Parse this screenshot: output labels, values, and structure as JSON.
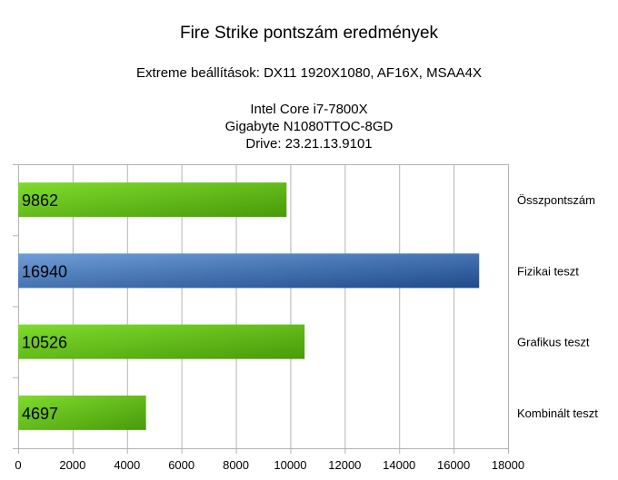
{
  "chart": {
    "title": "Fire Strike pontszám eredmények",
    "subtitle": "Extreme beállítások: DX11 1920X1080, AF16X, MSAA4X",
    "info_lines": [
      "Intel Core i7-7800X",
      "Gigabyte N1080TTOC-8GD",
      "Drive: 23.21.13.9101"
    ]
  },
  "colors": {
    "green_light": "#7edc2c",
    "green_dark": "#4a9a0a",
    "blue_light": "#6e9ed8",
    "blue_dark": "#1f4a8a",
    "grid": "#b3b3b3"
  },
  "chart_data": {
    "type": "bar",
    "orientation": "horizontal",
    "title": "Fire Strike pontszám eredmények",
    "categories": [
      "Összpontszám",
      "Fizikai teszt",
      "Grafikus teszt",
      "Kombinált teszt"
    ],
    "values": [
      9862,
      16940,
      10526,
      4697
    ],
    "bar_colors": [
      "green",
      "blue",
      "green",
      "green"
    ],
    "xlim": [
      0,
      18000
    ],
    "xticks": [
      0,
      2000,
      4000,
      6000,
      8000,
      10000,
      12000,
      14000,
      16000,
      18000
    ],
    "grid": true,
    "legend": "none"
  }
}
